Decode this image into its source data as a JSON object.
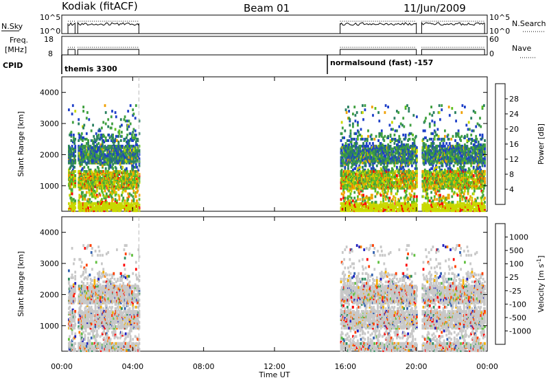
{
  "header": {
    "radar": "Kodiak (fitACF)",
    "beam": "Beam 01",
    "date": "11/Jun/2009"
  },
  "top_panels": {
    "nsky_label": "N.Sky",
    "nsky_ticks": [
      "10^5",
      "10^0"
    ],
    "nsearch_label": "N.Search",
    "nsearch_ticks": [
      "10^5",
      "10^0"
    ],
    "freq_label_1": "Freq.",
    "freq_label_2": "[MHz]",
    "freq_ticks": [
      "18",
      "8"
    ],
    "nave_label": "Nave",
    "nave_ticks": [
      "60",
      "0"
    ],
    "cpid_label": "CPID",
    "cpid_1": "themis 3300",
    "cpid_2": "normalsound (fast) -157"
  },
  "chart_data": [
    {
      "type": "heatmap",
      "title": "",
      "xlabel": "Time UT",
      "ylabel": "Slant Range [km]",
      "x_ticks": [
        "00:00",
        "04:00",
        "08:00",
        "12:00",
        "16:00",
        "20:00",
        "00:00"
      ],
      "x_tick_hours": [
        0,
        4,
        8,
        12,
        16,
        20,
        24
      ],
      "y_ticks": [
        1000,
        2000,
        3000,
        4000
      ],
      "ylim": [
        180,
        4500
      ],
      "xlim": [
        0,
        24
      ],
      "data_intervals_ut": [
        [
          0.35,
          0.75
        ],
        [
          0.9,
          4.35
        ],
        [
          15.7,
          20.0
        ],
        [
          20.3,
          23.85
        ]
      ],
      "colorbar": {
        "label": "Power [dB]",
        "ticks": [
          "28",
          "24",
          "20",
          "16",
          "12",
          "8",
          "4"
        ],
        "colors": [
          "#0000ff",
          "#1e40c8",
          "#2a8060",
          "#40a040",
          "#60c020",
          "#c8d800",
          "#f0a000",
          "#ff6000",
          "#ff0000"
        ]
      }
    },
    {
      "type": "heatmap",
      "title": "",
      "xlabel": "Time UT",
      "ylabel": "Slant Range [km]",
      "x_ticks": [
        "00:00",
        "04:00",
        "08:00",
        "12:00",
        "16:00",
        "20:00",
        "00:00"
      ],
      "x_tick_hours": [
        0,
        4,
        8,
        12,
        16,
        20,
        24
      ],
      "y_ticks": [
        1000,
        2000,
        3000,
        4000
      ],
      "ylim": [
        180,
        4500
      ],
      "xlim": [
        0,
        24
      ],
      "data_intervals_ut": [
        [
          0.35,
          0.75
        ],
        [
          0.9,
          4.35
        ],
        [
          15.7,
          20.0
        ],
        [
          20.3,
          23.85
        ]
      ],
      "colorbar": {
        "label": "Velocity [m s",
        "label_sup": "-1",
        "ticks": [
          "1000",
          "500",
          "100",
          "25",
          "-25",
          "-100",
          "-500",
          "-1000"
        ],
        "colors": [
          "#2020c0",
          "#3060b0",
          "#309060",
          "#60c040",
          "#c8c8c8",
          "#f0b000",
          "#ff8000",
          "#ff4000",
          "#ff0000"
        ]
      }
    }
  ]
}
